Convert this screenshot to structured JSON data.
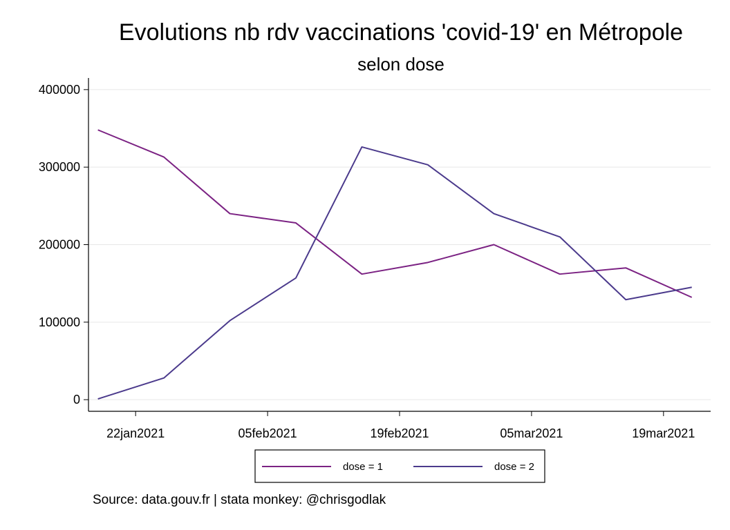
{
  "chart_data": {
    "type": "line",
    "title": "Evolutions nb rdv vaccinations 'covid-19' en Métropole",
    "subtitle": "selon dose",
    "xlabel": "",
    "ylabel": "",
    "x_dates": [
      "2021-01-18",
      "2021-01-25",
      "2021-02-01",
      "2021-02-08",
      "2021-02-15",
      "2021-02-22",
      "2021-03-01",
      "2021-03-08",
      "2021-03-15",
      "2021-03-22"
    ],
    "xticks": [
      "2021-01-22",
      "2021-02-05",
      "2021-02-19",
      "2021-03-05",
      "2021-03-19"
    ],
    "xtick_labels": [
      "22jan2021",
      "05feb2021",
      "19feb2021",
      "05mar2021",
      "19mar2021"
    ],
    "xlim": [
      "2021-01-17",
      "2021-03-24"
    ],
    "yticks": [
      0,
      100000,
      200000,
      300000,
      400000
    ],
    "ytick_labels": [
      "0",
      "100000",
      "200000",
      "300000",
      "400000"
    ],
    "ylim": [
      -15000,
      415000
    ],
    "grid": true,
    "legend_position": "bottom",
    "series": [
      {
        "name": "dose = 1",
        "color": "#7b2283",
        "values": [
          348000,
          313000,
          240000,
          228000,
          162000,
          177000,
          200000,
          162000,
          170000,
          132000
        ]
      },
      {
        "name": "dose = 2",
        "color": "#4b3a8c",
        "values": [
          1000,
          28000,
          102000,
          157000,
          326000,
          303000,
          240000,
          210000,
          129000,
          145000
        ]
      }
    ]
  },
  "source": "Source: data.gouv.fr | stata monkey: @chrisgodlak"
}
